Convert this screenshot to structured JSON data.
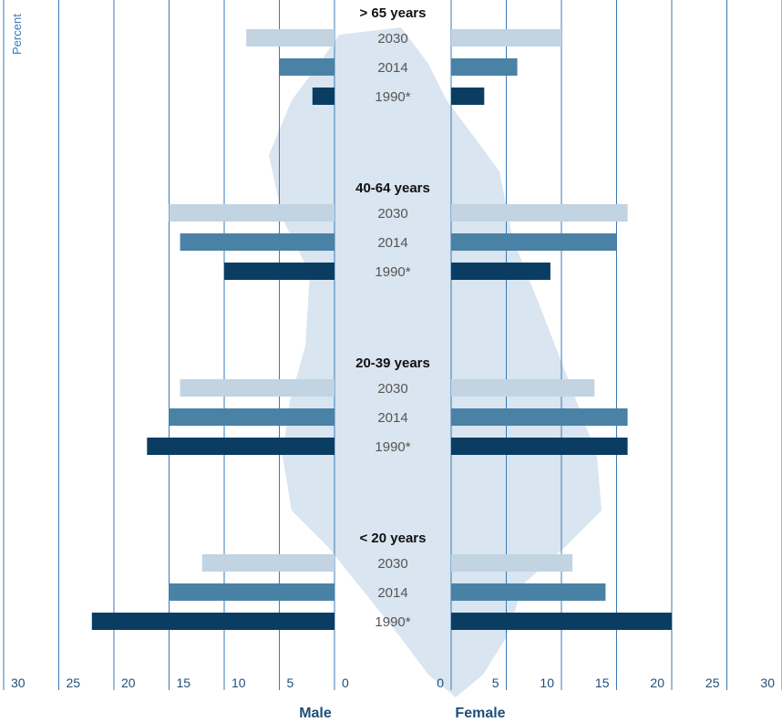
{
  "chart_data": {
    "type": "bar",
    "orientation": "horizontal-butterfly",
    "y_unit_label": "Percent",
    "left_label": "Male",
    "right_label": "Female",
    "x_ticks_left": [
      "30",
      "25",
      "20",
      "15",
      "10",
      "5",
      "0"
    ],
    "x_ticks_right": [
      "0",
      "5",
      "10",
      "15",
      "20",
      "25",
      "30"
    ],
    "xlim": [
      0,
      30
    ],
    "grid": true,
    "categories": [
      "> 65 years",
      "40-64 years",
      "20-39 years",
      "< 20 years"
    ],
    "years": [
      "2030",
      "2014",
      "1990*"
    ],
    "series": [
      {
        "name": "2030",
        "color": "#c2d3e2",
        "male": [
          8,
          15,
          14,
          12
        ],
        "female": [
          10,
          16,
          13,
          11
        ]
      },
      {
        "name": "2014",
        "color": "#4a82a6",
        "male": [
          5,
          14,
          15,
          15
        ],
        "female": [
          6,
          15,
          16,
          14
        ]
      },
      {
        "name": "1990*",
        "color": "#0b3d63",
        "male": [
          2,
          10,
          17,
          22
        ],
        "female": [
          3,
          9,
          16,
          20
        ]
      }
    ],
    "background_shape": "country-outline"
  }
}
